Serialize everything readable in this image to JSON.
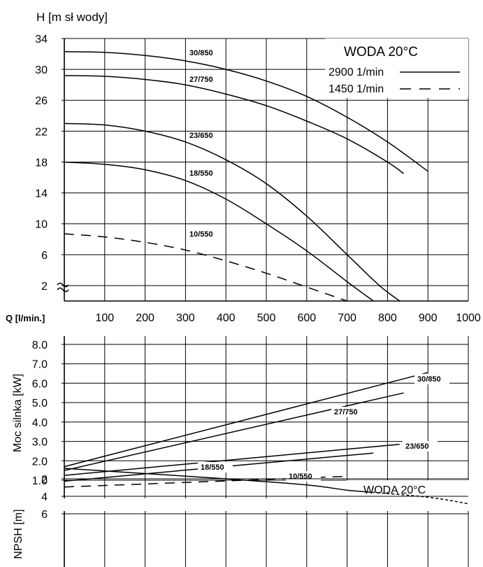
{
  "chart_data": [
    {
      "type": "line",
      "ylabel": "H [m sł wody]",
      "xlabel": "Q [l/min.]",
      "xlim": [
        0,
        1000
      ],
      "ylim": [
        0,
        34
      ],
      "y_axis_break": true,
      "grid": true,
      "yticks": [
        "2",
        "6",
        "10",
        "14",
        "18",
        "22",
        "26",
        "30",
        "34"
      ],
      "xticks": [
        "100",
        "200",
        "300",
        "400",
        "500",
        "600",
        "700",
        "800",
        "900",
        "1000"
      ],
      "box": {
        "title": "WODA 20°C",
        "legend_2900": "2900 1/min",
        "legend_1450": "1450 1/min"
      },
      "series": [
        {
          "name": "30/850",
          "style": "solid",
          "x": [
            0,
            100,
            200,
            300,
            400,
            500,
            600,
            700,
            800,
            900
          ],
          "y": [
            32.3,
            32.2,
            31.8,
            31.1,
            30.0,
            28.5,
            26.5,
            23.8,
            20.6,
            16.8
          ]
        },
        {
          "name": "27/750",
          "style": "solid",
          "x": [
            0,
            100,
            200,
            300,
            400,
            500,
            600,
            700,
            800,
            840
          ],
          "y": [
            29.2,
            29.1,
            28.7,
            28.0,
            26.8,
            25.3,
            23.3,
            21.0,
            18.0,
            16.5
          ]
        },
        {
          "name": "23/650",
          "style": "solid",
          "x": [
            0,
            100,
            200,
            300,
            400,
            500,
            600,
            700,
            780,
            830
          ],
          "y": [
            23.0,
            22.8,
            22.0,
            20.6,
            18.3,
            15.2,
            11.0,
            6.0,
            2.0,
            0.0
          ]
        },
        {
          "name": "18/550",
          "style": "solid",
          "x": [
            0,
            100,
            200,
            300,
            400,
            500,
            600,
            700,
            765
          ],
          "y": [
            18.0,
            17.7,
            17.0,
            15.6,
            13.2,
            10.0,
            6.5,
            2.5,
            0.0
          ]
        },
        {
          "name": "10/550",
          "style": "dashed",
          "x": [
            0,
            100,
            200,
            300,
            400,
            500,
            600,
            700
          ],
          "y": [
            8.7,
            8.3,
            7.6,
            6.6,
            5.2,
            3.6,
            1.8,
            0.0
          ]
        }
      ]
    },
    {
      "type": "line",
      "ylabel": "Moc silnka [kW]",
      "xlim": [
        0,
        1000
      ],
      "ylim": [
        0.5,
        8.2
      ],
      "grid": true,
      "yticks": [
        "1.0",
        "2.0",
        "3.0",
        "4.0",
        "5.0",
        "6.0",
        "7.0",
        "8.0"
      ],
      "box": {
        "title": "WODA 20°C"
      },
      "series": [
        {
          "name": "30/850",
          "style": "solid",
          "x": [
            0,
            900
          ],
          "y": [
            1.7,
            6.55
          ]
        },
        {
          "name": "27/750",
          "style": "solid",
          "x": [
            0,
            840
          ],
          "y": [
            1.5,
            5.5
          ]
        },
        {
          "name": "23/650",
          "style": "solid",
          "x": [
            0,
            830
          ],
          "y": [
            1.25,
            2.85
          ]
        },
        {
          "name": "18/550",
          "style": "solid",
          "x": [
            0,
            765
          ],
          "y": [
            0.95,
            2.4
          ]
        },
        {
          "name": "10/550",
          "style": "dashed",
          "x": [
            0,
            700
          ],
          "y": [
            0.65,
            1.2
          ]
        }
      ]
    },
    {
      "type": "line",
      "ylabel": "NPSH [m]",
      "xlim": [
        0,
        1000
      ],
      "ylim": [
        0,
        6.6
      ],
      "grid": true,
      "yticks": [
        "2",
        "4",
        "6"
      ],
      "series": [
        {
          "style": "solid",
          "x": [
            0,
            200,
            400,
            600,
            700,
            750
          ],
          "y": [
            0.8,
            1.4,
            2.0,
            2.7,
            3.3,
            3.5
          ]
        },
        {
          "style": "dashed",
          "x": [
            750,
            900,
            1000
          ],
          "y": [
            3.5,
            4.1,
            4.85
          ]
        }
      ]
    }
  ]
}
